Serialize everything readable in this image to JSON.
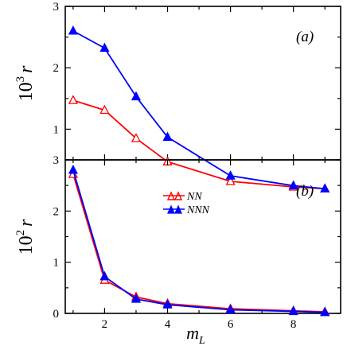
{
  "chart_data": [
    {
      "type": "line",
      "panel_label": "(a)",
      "ylabel_base": "10",
      "ylabel_exp": "3",
      "ylabel_var": "r",
      "xlim": [
        0.75,
        9.5
      ],
      "ylim": [
        0.5,
        3
      ],
      "xticks": [
        2,
        4,
        6,
        8
      ],
      "yticks": [
        1,
        2,
        3
      ],
      "series": [
        {
          "name": "NN",
          "color": "#ff0000",
          "marker": "open-triangle",
          "x": [
            1,
            2,
            3,
            4,
            6,
            8,
            9
          ],
          "y": [
            1.47,
            1.31,
            0.85,
            0.47,
            0.15,
            0.06,
            0.03
          ]
        },
        {
          "name": "NNN",
          "color": "#0000ff",
          "marker": "filled-triangle",
          "x": [
            1,
            2,
            3,
            4,
            6,
            8,
            9
          ],
          "y": [
            2.6,
            2.32,
            1.53,
            0.87,
            0.24,
            0.08,
            0.03
          ]
        }
      ]
    },
    {
      "type": "line",
      "panel_label": "(b)",
      "ylabel_base": "10",
      "ylabel_exp": "2",
      "ylabel_var": "r",
      "xlabel_base": "m",
      "xlabel_sub": "L",
      "xlim": [
        0.75,
        9.5
      ],
      "ylim": [
        0,
        3
      ],
      "xticks": [
        2,
        4,
        6,
        8
      ],
      "yticks": [
        0,
        1,
        2,
        3
      ],
      "legend": {
        "position": "top-center"
      },
      "series": [
        {
          "name": "NN",
          "color": "#ff0000",
          "marker": "open-triangle",
          "x": [
            1,
            2,
            3,
            4,
            6,
            8,
            9
          ],
          "y": [
            2.72,
            0.65,
            0.32,
            0.19,
            0.09,
            0.05,
            0.03
          ]
        },
        {
          "name": "NNN",
          "color": "#0000ff",
          "marker": "filled-triangle",
          "x": [
            1,
            2,
            3,
            4,
            6,
            8,
            9
          ],
          "y": [
            2.8,
            0.72,
            0.28,
            0.17,
            0.07,
            0.04,
            0.02
          ]
        }
      ]
    }
  ]
}
